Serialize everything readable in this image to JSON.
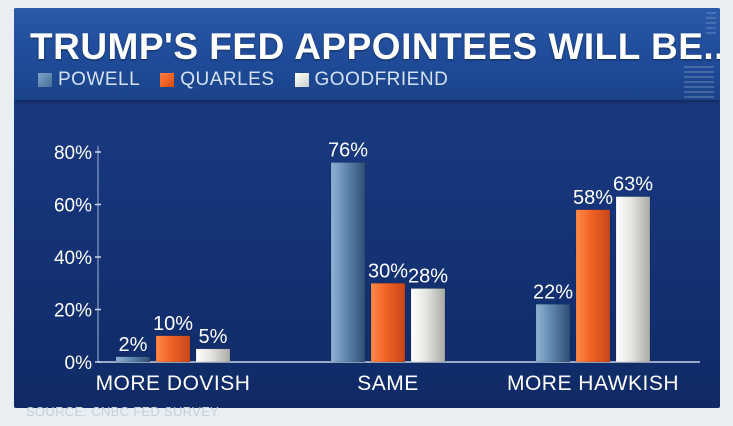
{
  "title": "TRUMP'S FED APPOINTEES WILL BE...",
  "source": "SOURCE: CNBC FED SURVEY",
  "colors": {
    "powell": "#5f87ad",
    "quarles": "#f06224",
    "goodfriend": "#e4e4e0"
  },
  "chart_data": {
    "type": "bar",
    "title": "TRUMP'S FED APPOINTEES WILL BE...",
    "categories": [
      "MORE DOVISH",
      "SAME",
      "MORE HAWKISH"
    ],
    "series": [
      {
        "name": "POWELL",
        "values": [
          2,
          76,
          22
        ],
        "labels": [
          "2%",
          "76%",
          "22%"
        ]
      },
      {
        "name": "QUARLES",
        "values": [
          10,
          30,
          58
        ],
        "labels": [
          "10%",
          "30%",
          "58%"
        ]
      },
      {
        "name": "GOODFRIEND",
        "values": [
          5,
          28,
          63
        ],
        "labels": [
          "5%",
          "28%",
          "63%"
        ]
      }
    ],
    "yticks": [
      {
        "value": 0,
        "label": "0%"
      },
      {
        "value": 20,
        "label": "20%"
      },
      {
        "value": 40,
        "label": "40%"
      },
      {
        "value": 60,
        "label": "60%"
      },
      {
        "value": 80,
        "label": "80%"
      }
    ],
    "ylim": [
      0,
      80
    ],
    "legend": "top-left",
    "grid": false
  }
}
